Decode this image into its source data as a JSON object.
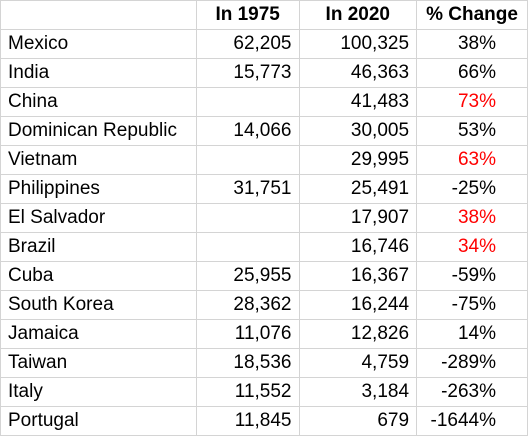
{
  "headers": [
    "",
    "In 1975",
    "In 2020",
    "% Change"
  ],
  "rows": [
    {
      "country": "Mexico",
      "y1975": "62,205",
      "y2020": "100,325",
      "change": "38%",
      "highlight": false
    },
    {
      "country": "India",
      "y1975": "15,773",
      "y2020": "46,363",
      "change": "66%",
      "highlight": false
    },
    {
      "country": "China",
      "y1975": "",
      "y2020": "41,483",
      "change": "73%",
      "highlight": true
    },
    {
      "country": "Dominican Republic",
      "y1975": "14,066",
      "y2020": "30,005",
      "change": "53%",
      "highlight": false
    },
    {
      "country": "Vietnam",
      "y1975": "",
      "y2020": "29,995",
      "change": "63%",
      "highlight": true
    },
    {
      "country": "Philippines",
      "y1975": "31,751",
      "y2020": "25,491",
      "change": "-25%",
      "highlight": false
    },
    {
      "country": "El Salvador",
      "y1975": "",
      "y2020": "17,907",
      "change": "38%",
      "highlight": true
    },
    {
      "country": "Brazil",
      "y1975": "",
      "y2020": "16,746",
      "change": "34%",
      "highlight": true
    },
    {
      "country": "Cuba",
      "y1975": "25,955",
      "y2020": "16,367",
      "change": "-59%",
      "highlight": false
    },
    {
      "country": "South Korea",
      "y1975": "28,362",
      "y2020": "16,244",
      "change": "-75%",
      "highlight": false
    },
    {
      "country": "Jamaica",
      "y1975": "11,076",
      "y2020": "12,826",
      "change": "14%",
      "highlight": false
    },
    {
      "country": "Taiwan",
      "y1975": "18,536",
      "y2020": "4,759",
      "change": "-289%",
      "highlight": false
    },
    {
      "country": "Italy",
      "y1975": "11,552",
      "y2020": "3,184",
      "change": "-263%",
      "highlight": false
    },
    {
      "country": "Portugal",
      "y1975": "11,845",
      "y2020": "679",
      "change": "-1644%",
      "highlight": false
    }
  ],
  "colors": {
    "highlight": "#ff0000",
    "gridline": "#d4d4d4"
  }
}
